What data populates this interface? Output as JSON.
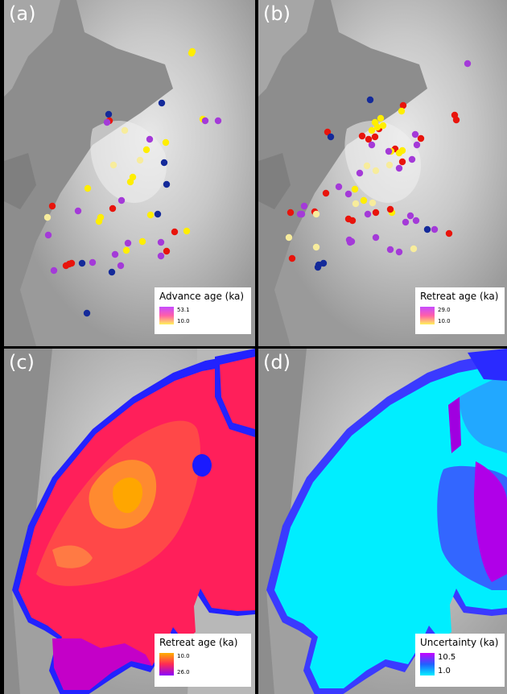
{
  "panels": {
    "a": {
      "label": "(a)",
      "legend": {
        "title": "Advance age (ka)",
        "max": "53.1",
        "min": "10.0",
        "colors": [
          "#c64bff",
          "#ff5fa8",
          "#fff25a"
        ]
      }
    },
    "b": {
      "label": "(b)",
      "legend": {
        "title": "Retreat age (ka)",
        "max": "29.0",
        "min": "10.0",
        "colors": [
          "#c64bff",
          "#ff5fa8",
          "#fff25a"
        ]
      }
    },
    "c": {
      "label": "(c)",
      "legend": {
        "title": "Retreat age (ka)",
        "top": "10.0",
        "bottom": "26.0",
        "colors": [
          "#ffb000",
          "#ff2a55",
          "#8a00ff"
        ]
      }
    },
    "d": {
      "label": "(d)",
      "legend": {
        "title": "Uncertainty (ka)",
        "top": "10.5",
        "bottom": "1.0",
        "colors": [
          "#c800ff",
          "#2060ff",
          "#00f0ff"
        ]
      }
    }
  },
  "dot_colors": {
    "dark_blue": "#142a9a",
    "red": "#e8140c",
    "purple": "#a43ad8",
    "yellow": "#ffee00",
    "pale_yellow": "#f7ec9c"
  }
}
